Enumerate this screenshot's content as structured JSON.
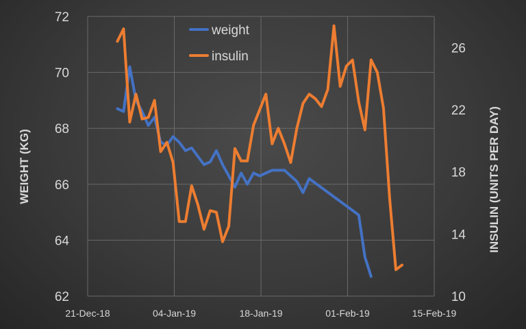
{
  "chart_data": {
    "type": "line",
    "title": "",
    "xlabel": "",
    "ylabel_left": "WEIGHT (KG)",
    "ylabel_right": "INSULIN (UNITS PER DAY)",
    "x_tick_labels": [
      "21-Dec-18",
      "04-Jan-19",
      "18-Jan-19",
      "01-Feb-19",
      "15-Feb-19"
    ],
    "x_range_days": [
      0,
      56
    ],
    "ylim_left": [
      62,
      72
    ],
    "yticks_left": [
      "62",
      "64",
      "66",
      "68",
      "70",
      "72"
    ],
    "ylim_right": [
      10,
      28
    ],
    "yticks_right": [
      "10",
      "14",
      "18",
      "22",
      "26"
    ],
    "legend": {
      "position": "top-center",
      "entries": [
        "weight",
        "insulin"
      ]
    },
    "colors": {
      "weight": "#4472c4",
      "insulin": "#ed7d31",
      "grid": "#6a6a6a",
      "text": "#d9d9d9"
    },
    "series": [
      {
        "name": "weight",
        "axis": "left",
        "x_days": [
          4.8,
          5.8,
          6.8,
          7.8,
          8.8,
          9.8,
          10.8,
          11.8,
          12.8,
          13.8,
          14.8,
          15.8,
          16.8,
          17.8,
          18.8,
          19.8,
          20.8,
          21.8,
          22.8,
          23.8,
          24.8,
          25.8,
          26.8,
          27.8,
          28.8,
          29.8,
          30.8,
          31.8,
          32.8,
          33.8,
          34.8,
          35.8,
          43.8,
          44.8,
          45.8
        ],
        "values": [
          68.7,
          68.6,
          70.2,
          69.0,
          68.6,
          68.1,
          68.4,
          67.5,
          67.4,
          67.7,
          67.5,
          67.2,
          67.3,
          67.0,
          66.7,
          66.8,
          67.2,
          66.7,
          66.3,
          65.9,
          66.4,
          66.0,
          66.4,
          66.3,
          66.4,
          66.5,
          66.5,
          66.5,
          66.3,
          66.1,
          65.7,
          66.2,
          64.9,
          63.4,
          62.7
        ]
      },
      {
        "name": "insulin",
        "axis": "right",
        "x_days": [
          4.8,
          5.8,
          6.8,
          7.8,
          8.8,
          9.8,
          10.8,
          11.8,
          12.8,
          13.8,
          14.8,
          15.8,
          16.8,
          17.8,
          18.8,
          19.8,
          20.8,
          21.8,
          22.8,
          23.8,
          24.8,
          25.8,
          26.8,
          27.8,
          28.8,
          29.8,
          30.8,
          31.8,
          32.8,
          33.8,
          34.8,
          35.8,
          36.8,
          37.8,
          38.8,
          39.8,
          40.8,
          41.8,
          42.8,
          43.8,
          44.8,
          45.8
        ],
        "values": [
          26.4,
          27.2,
          21.2,
          23.0,
          21.4,
          21.5,
          22.6,
          19.3,
          19.9,
          18.6,
          14.8,
          14.8,
          17.1,
          15.9,
          14.3,
          15.5,
          15.4,
          13.5,
          14.5,
          19.5,
          18.7,
          18.7,
          21.0,
          22.0,
          23.0,
          19.8,
          20.8,
          19.8,
          18.6,
          20.8,
          22.4,
          23.0,
          22.7,
          22.2,
          23.3,
          27.4,
          23.5,
          24.8,
          25.2,
          22.5,
          20.7,
          25.2
        ]
      }
    ],
    "insulin_tail": {
      "x_days": [
        46.8,
        47.8,
        48.8,
        49.8,
        50.8
      ],
      "values": [
        24.4,
        22.1,
        16.3,
        11.7,
        12.0
      ]
    }
  }
}
